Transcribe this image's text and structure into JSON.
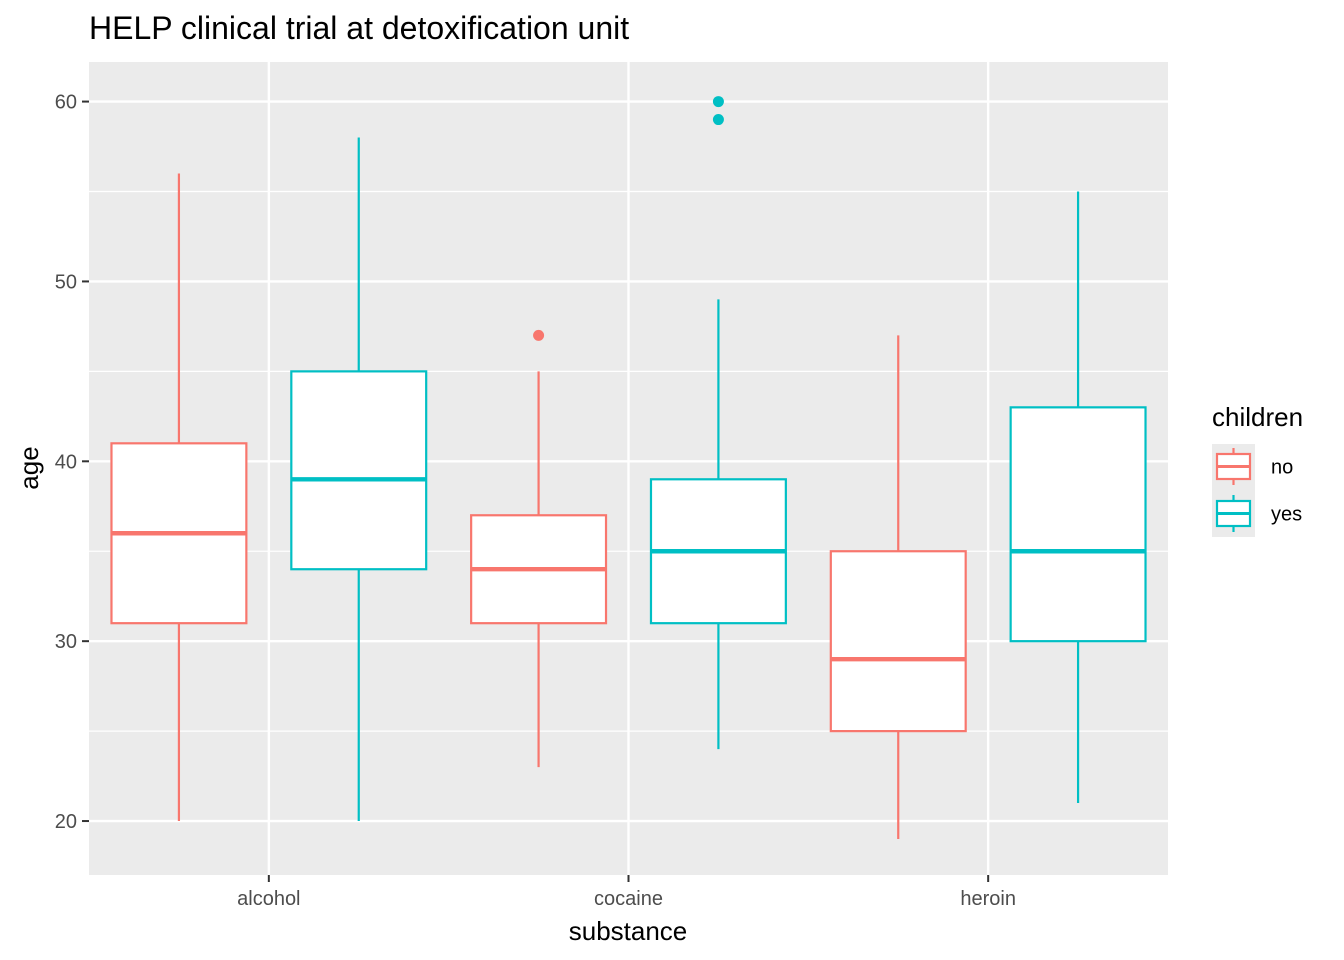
{
  "chart_data": {
    "type": "boxplot",
    "title": "HELP clinical trial at detoxification unit",
    "xlabel": "substance",
    "ylabel": "age",
    "categories": [
      "alcohol",
      "cocaine",
      "heroin"
    ],
    "ylim": [
      17,
      62.2
    ],
    "y_ticks": [
      20,
      30,
      40,
      50,
      60
    ],
    "grid": true,
    "legend": {
      "title": "children",
      "position": "right",
      "entries": [
        "no",
        "yes"
      ]
    },
    "series": [
      {
        "name": "no",
        "color": "#F8766D",
        "boxes": [
          {
            "category": "alcohol",
            "lower_whisker": 20,
            "q1": 31,
            "median": 36,
            "q3": 41,
            "upper_whisker": 56,
            "outliers": []
          },
          {
            "category": "cocaine",
            "lower_whisker": 23,
            "q1": 31,
            "median": 34,
            "q3": 37,
            "upper_whisker": 45,
            "outliers": [
              47
            ]
          },
          {
            "category": "heroin",
            "lower_whisker": 19,
            "q1": 25,
            "median": 29,
            "q3": 35,
            "upper_whisker": 47,
            "outliers": []
          }
        ]
      },
      {
        "name": "yes",
        "color": "#00BFC4",
        "boxes": [
          {
            "category": "alcohol",
            "lower_whisker": 20,
            "q1": 34,
            "median": 39,
            "q3": 45,
            "upper_whisker": 58,
            "outliers": []
          },
          {
            "category": "cocaine",
            "lower_whisker": 24,
            "q1": 31,
            "median": 35,
            "q3": 39,
            "upper_whisker": 49,
            "outliers": [
              59,
              60
            ]
          },
          {
            "category": "heroin",
            "lower_whisker": 21,
            "q1": 30,
            "median": 35,
            "q3": 43,
            "upper_whisker": 55,
            "outliers": []
          }
        ]
      }
    ]
  },
  "colors": {
    "panel_background": "#EBEBEB",
    "grid": "#FFFFFF",
    "tick_text": "#4D4D4D"
  }
}
